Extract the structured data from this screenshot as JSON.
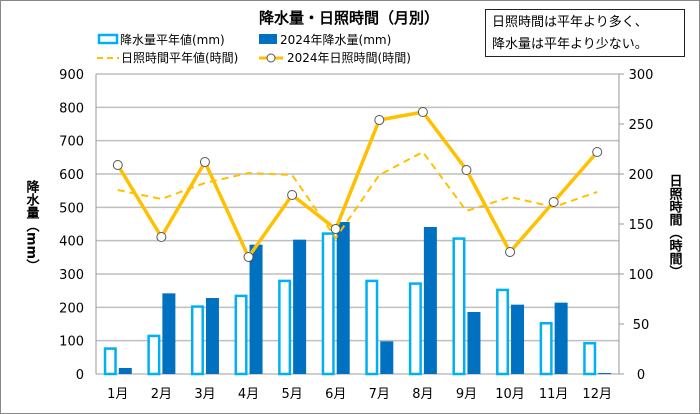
{
  "chart_data": {
    "type": "bar+line",
    "title": "降水量・日照時間（月別）",
    "categories": [
      "1月",
      "2月",
      "3月",
      "4月",
      "5月",
      "6月",
      "7月",
      "8月",
      "9月",
      "10月",
      "11月",
      "12月"
    ],
    "ylabel": "降水量（mm）",
    "y2label": "日照時間（時間）",
    "ylim": [
      0,
      900
    ],
    "y2lim": [
      0,
      300
    ],
    "yticks": [
      "0",
      "100",
      "200",
      "300",
      "400",
      "500",
      "600",
      "700",
      "800",
      "900"
    ],
    "y2ticks": [
      "0",
      "50",
      "100",
      "150",
      "200",
      "250",
      "300"
    ],
    "grid": true,
    "series": [
      {
        "name": "降水量平年値(mm)",
        "type": "bar",
        "axis": "left",
        "color": "#00B0F0",
        "style": "outline",
        "values": [
          80,
          118,
          206,
          238,
          283,
          425,
          283,
          275,
          410,
          256,
          156,
          96
        ]
      },
      {
        "name": "2024年降水量(mm)",
        "type": "bar",
        "axis": "left",
        "color": "#0070C0",
        "style": "filled",
        "values": [
          18,
          242,
          228,
          388,
          403,
          456,
          98,
          441,
          186,
          208,
          214,
          3
        ]
      },
      {
        "name": "日照時間平年値(時間)",
        "type": "line",
        "axis": "right",
        "color": "#FFC000",
        "style": "dashed",
        "values": [
          184,
          175,
          191,
          201,
          199,
          136,
          199,
          222,
          163,
          177,
          167,
          182
        ]
      },
      {
        "name": "2024年日照時間(時間)",
        "type": "line",
        "axis": "right",
        "color": "#FFC000",
        "style": "solid-markers",
        "values": [
          209,
          137,
          212,
          117,
          179,
          145,
          254,
          262,
          204,
          122,
          172,
          222
        ]
      }
    ],
    "legend": "top",
    "annotation": [
      "日照時間は平年より多く、",
      "降水量は平年より少ない。"
    ]
  }
}
